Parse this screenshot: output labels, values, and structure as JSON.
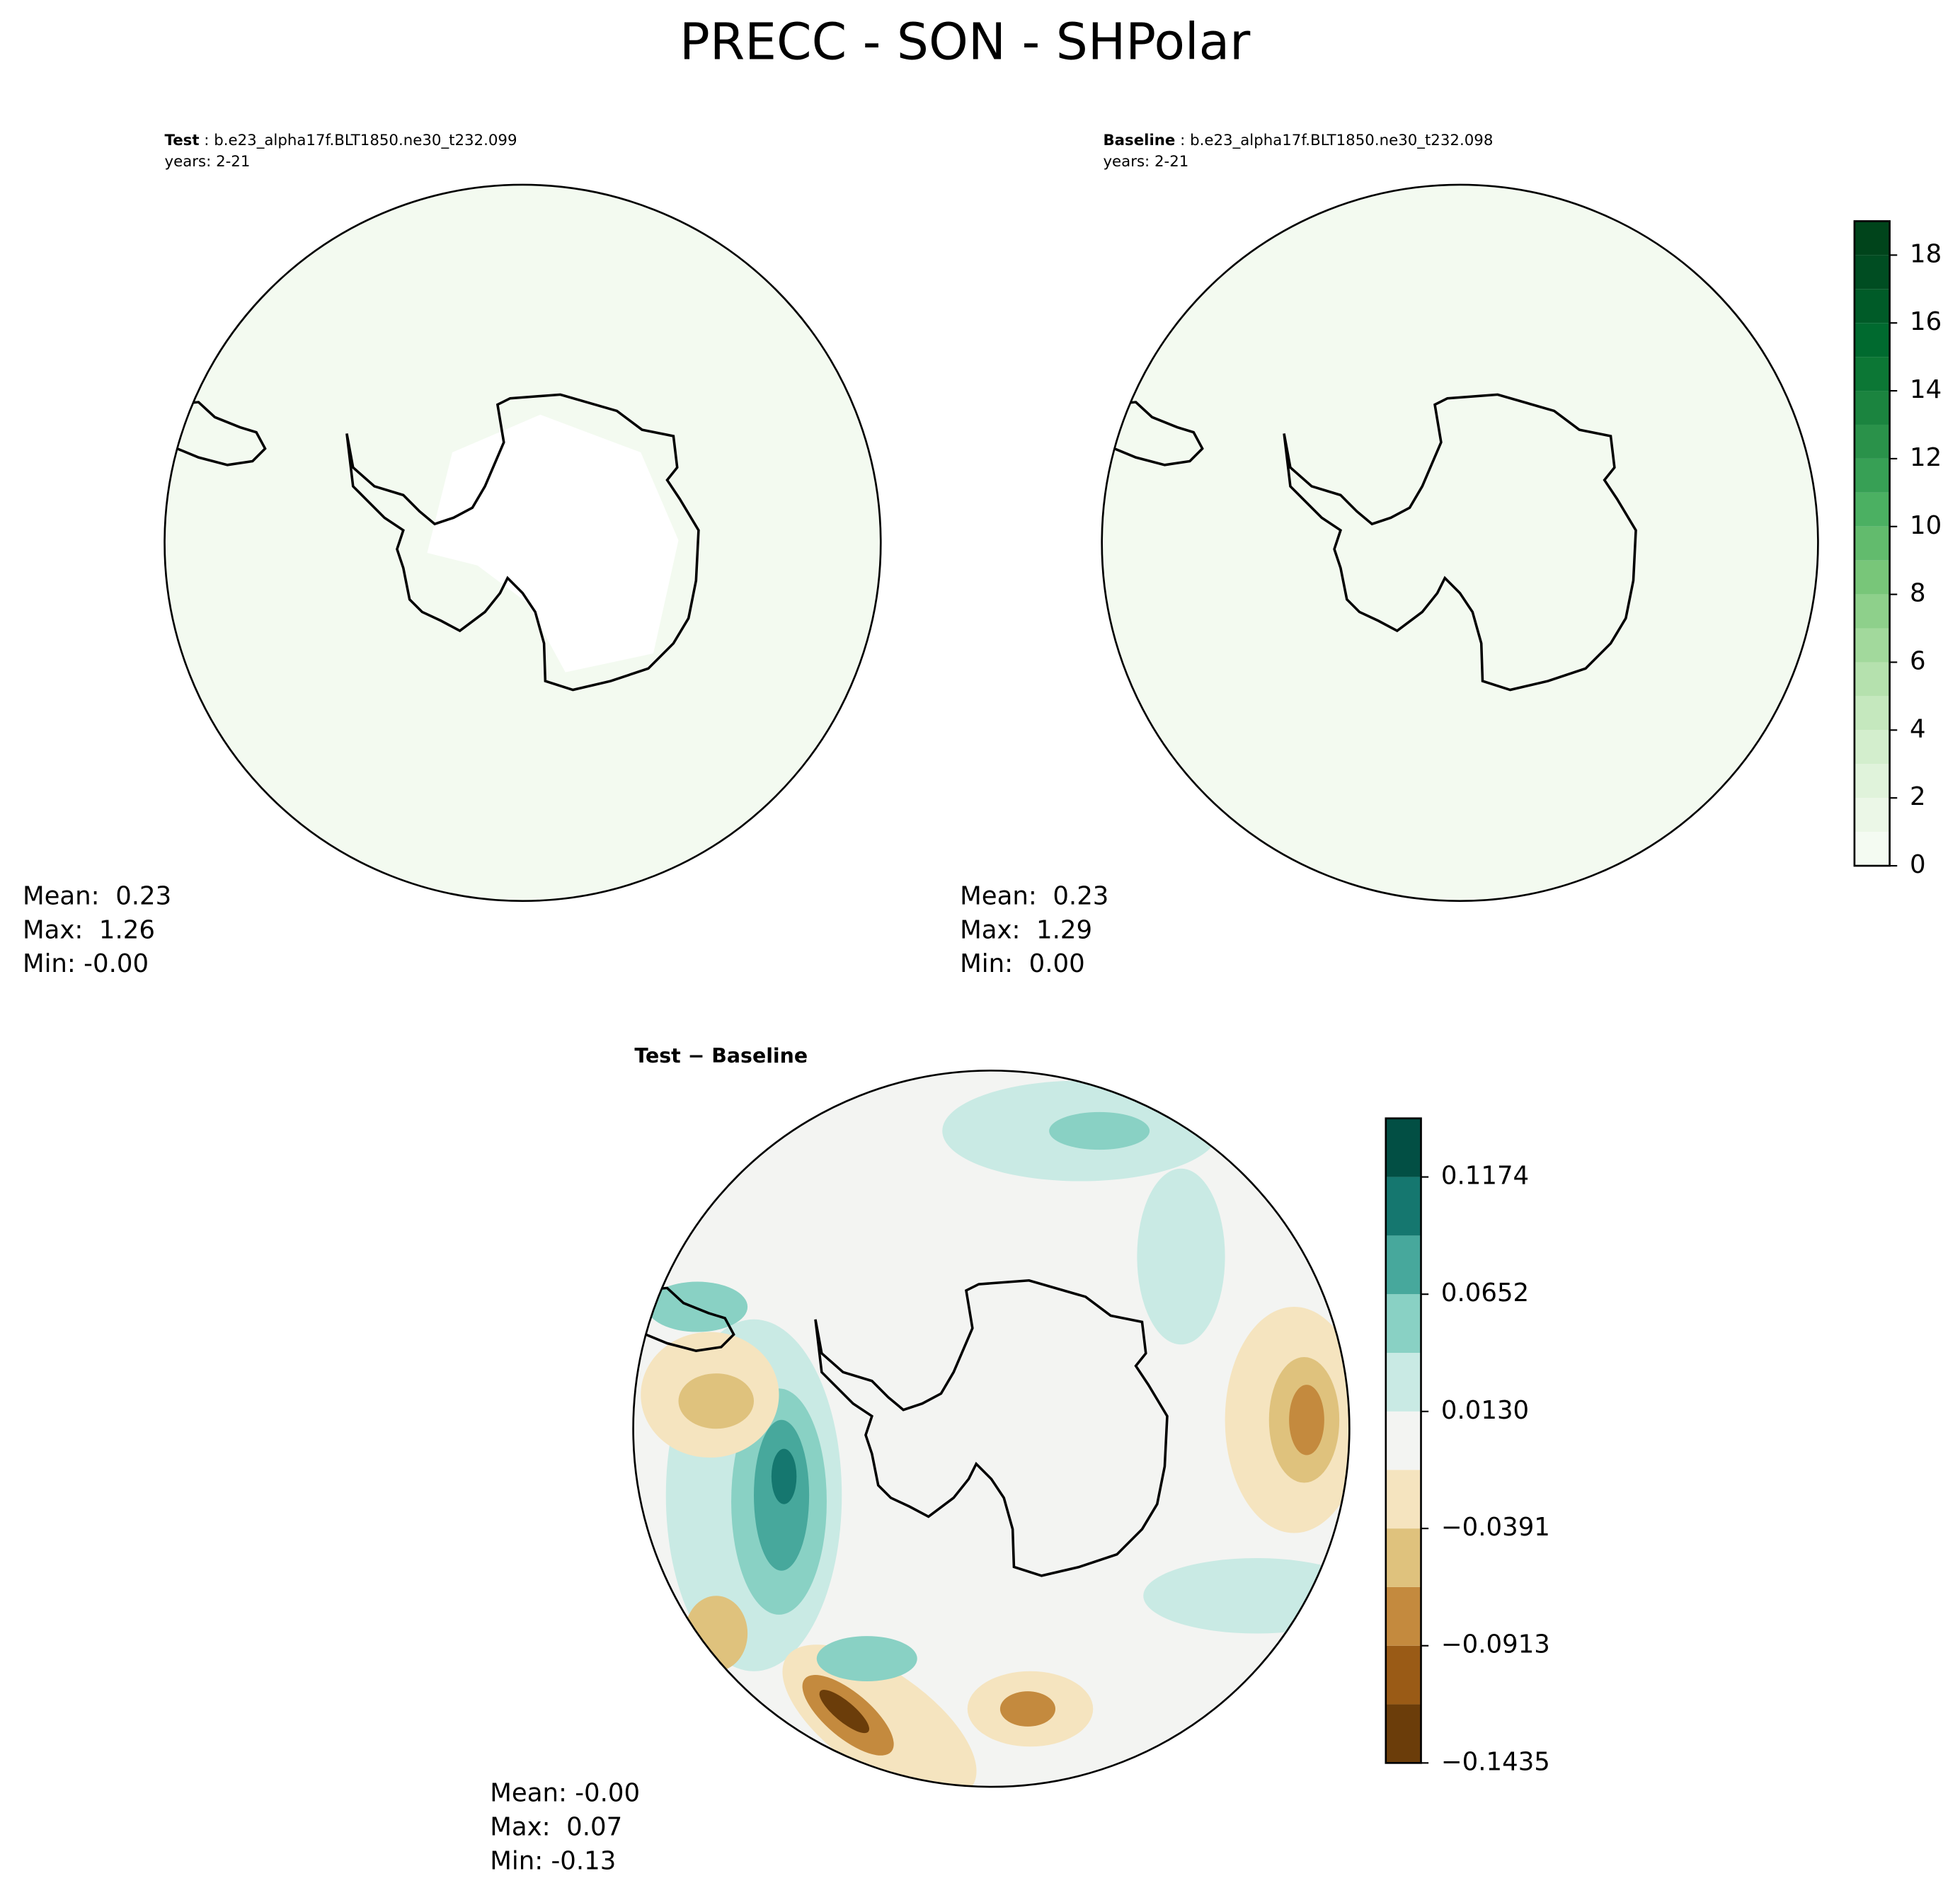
{
  "title": "PRECC - SON - SHPolar",
  "panels": [
    {
      "label": "Test",
      "case_line": " : b.e23_alpha17f.BLT1850.ne30_t232.099",
      "years": "years: 2-21",
      "stats": [
        "Mean:  0.23",
        "Max:  1.26",
        "Min: -0.00"
      ]
    },
    {
      "label": "Baseline",
      "case_line": " : b.e23_alpha17f.BLT1850.ne30_t232.098",
      "years": "years: 2-21",
      "stats": [
        "Mean:  0.23",
        "Max:  1.29",
        "Min:  0.00"
      ]
    },
    {
      "label": "Test − Baseline",
      "stats": [
        "Mean: -0.00",
        "Max:  0.07",
        "Min: -0.13"
      ]
    }
  ],
  "colorbars": [
    {
      "lim": [
        0,
        19
      ],
      "ticks": [
        0,
        2,
        4,
        6,
        8,
        10,
        12,
        14,
        16,
        18
      ],
      "levels": [
        0,
        1,
        2,
        3,
        4,
        5,
        6,
        7,
        8,
        9,
        10,
        11,
        12,
        13,
        14,
        15,
        16,
        17,
        18,
        19
      ],
      "colors": [
        "#f4fbf2",
        "#ebf7e7",
        "#e0f3db",
        "#d3eecd",
        "#c5e8be",
        "#b5e1ae",
        "#a2d99c",
        "#8ed08b",
        "#78c679",
        "#62bb6d",
        "#4bb062",
        "#37a055",
        "#2a924a",
        "#1b843f",
        "#0c7735",
        "#006a2f",
        "#005b28",
        "#004d22",
        "#00441b"
      ]
    },
    {
      "lim": [
        -0.1435,
        0.1435
      ],
      "ticks": [
        {
          "value": -0.1435,
          "label": "−0.1435"
        },
        {
          "value": -0.0913,
          "label": "−0.0913"
        },
        {
          "value": -0.0391,
          "label": "−0.0391"
        },
        {
          "value": 0.013,
          "label": "0.0130"
        },
        0.0652,
        0.1174
      ],
      "levels": [
        -0.1435,
        -0.1174,
        -0.0913,
        -0.0652,
        -0.0391,
        -0.013,
        0.013,
        0.0391,
        0.0652,
        0.0913,
        0.1174,
        0.1435
      ],
      "colors": [
        "#6b3d0a",
        "#9a5b16",
        "#c48a3e",
        "#dfc27d",
        "#f5e4bf",
        "#f3f4f2",
        "#c9eae4",
        "#89d1c4",
        "#47a89c",
        "#15776f",
        "#024f44"
      ]
    }
  ]
}
